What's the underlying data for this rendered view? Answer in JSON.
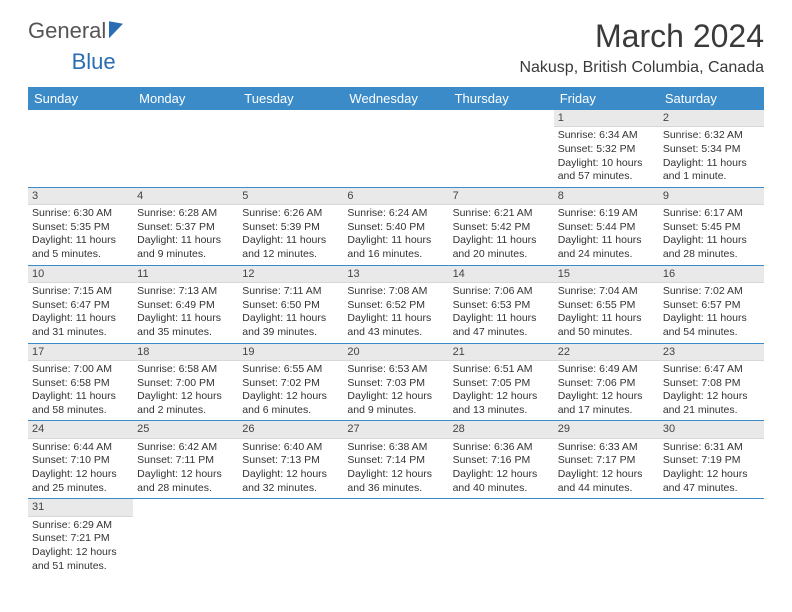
{
  "brand": {
    "part1": "General",
    "part2": "Blue"
  },
  "title": "March 2024",
  "location": "Nakusp, British Columbia, Canada",
  "colors": {
    "header_bg": "#3b8bc9",
    "header_text": "#ffffff",
    "daynum_bg": "#e9e9e9",
    "row_border": "#3b8bc9",
    "text": "#333333",
    "background": "#ffffff"
  },
  "weekdays": [
    "Sunday",
    "Monday",
    "Tuesday",
    "Wednesday",
    "Thursday",
    "Friday",
    "Saturday"
  ],
  "weeks": [
    [
      {
        "empty": true
      },
      {
        "empty": true
      },
      {
        "empty": true
      },
      {
        "empty": true
      },
      {
        "empty": true
      },
      {
        "num": "1",
        "sunrise": "Sunrise: 6:34 AM",
        "sunset": "Sunset: 5:32 PM",
        "daylight": "Daylight: 10 hours and 57 minutes."
      },
      {
        "num": "2",
        "sunrise": "Sunrise: 6:32 AM",
        "sunset": "Sunset: 5:34 PM",
        "daylight": "Daylight: 11 hours and 1 minute."
      }
    ],
    [
      {
        "num": "3",
        "sunrise": "Sunrise: 6:30 AM",
        "sunset": "Sunset: 5:35 PM",
        "daylight": "Daylight: 11 hours and 5 minutes."
      },
      {
        "num": "4",
        "sunrise": "Sunrise: 6:28 AM",
        "sunset": "Sunset: 5:37 PM",
        "daylight": "Daylight: 11 hours and 9 minutes."
      },
      {
        "num": "5",
        "sunrise": "Sunrise: 6:26 AM",
        "sunset": "Sunset: 5:39 PM",
        "daylight": "Daylight: 11 hours and 12 minutes."
      },
      {
        "num": "6",
        "sunrise": "Sunrise: 6:24 AM",
        "sunset": "Sunset: 5:40 PM",
        "daylight": "Daylight: 11 hours and 16 minutes."
      },
      {
        "num": "7",
        "sunrise": "Sunrise: 6:21 AM",
        "sunset": "Sunset: 5:42 PM",
        "daylight": "Daylight: 11 hours and 20 minutes."
      },
      {
        "num": "8",
        "sunrise": "Sunrise: 6:19 AM",
        "sunset": "Sunset: 5:44 PM",
        "daylight": "Daylight: 11 hours and 24 minutes."
      },
      {
        "num": "9",
        "sunrise": "Sunrise: 6:17 AM",
        "sunset": "Sunset: 5:45 PM",
        "daylight": "Daylight: 11 hours and 28 minutes."
      }
    ],
    [
      {
        "num": "10",
        "sunrise": "Sunrise: 7:15 AM",
        "sunset": "Sunset: 6:47 PM",
        "daylight": "Daylight: 11 hours and 31 minutes."
      },
      {
        "num": "11",
        "sunrise": "Sunrise: 7:13 AM",
        "sunset": "Sunset: 6:49 PM",
        "daylight": "Daylight: 11 hours and 35 minutes."
      },
      {
        "num": "12",
        "sunrise": "Sunrise: 7:11 AM",
        "sunset": "Sunset: 6:50 PM",
        "daylight": "Daylight: 11 hours and 39 minutes."
      },
      {
        "num": "13",
        "sunrise": "Sunrise: 7:08 AM",
        "sunset": "Sunset: 6:52 PM",
        "daylight": "Daylight: 11 hours and 43 minutes."
      },
      {
        "num": "14",
        "sunrise": "Sunrise: 7:06 AM",
        "sunset": "Sunset: 6:53 PM",
        "daylight": "Daylight: 11 hours and 47 minutes."
      },
      {
        "num": "15",
        "sunrise": "Sunrise: 7:04 AM",
        "sunset": "Sunset: 6:55 PM",
        "daylight": "Daylight: 11 hours and 50 minutes."
      },
      {
        "num": "16",
        "sunrise": "Sunrise: 7:02 AM",
        "sunset": "Sunset: 6:57 PM",
        "daylight": "Daylight: 11 hours and 54 minutes."
      }
    ],
    [
      {
        "num": "17",
        "sunrise": "Sunrise: 7:00 AM",
        "sunset": "Sunset: 6:58 PM",
        "daylight": "Daylight: 11 hours and 58 minutes."
      },
      {
        "num": "18",
        "sunrise": "Sunrise: 6:58 AM",
        "sunset": "Sunset: 7:00 PM",
        "daylight": "Daylight: 12 hours and 2 minutes."
      },
      {
        "num": "19",
        "sunrise": "Sunrise: 6:55 AM",
        "sunset": "Sunset: 7:02 PM",
        "daylight": "Daylight: 12 hours and 6 minutes."
      },
      {
        "num": "20",
        "sunrise": "Sunrise: 6:53 AM",
        "sunset": "Sunset: 7:03 PM",
        "daylight": "Daylight: 12 hours and 9 minutes."
      },
      {
        "num": "21",
        "sunrise": "Sunrise: 6:51 AM",
        "sunset": "Sunset: 7:05 PM",
        "daylight": "Daylight: 12 hours and 13 minutes."
      },
      {
        "num": "22",
        "sunrise": "Sunrise: 6:49 AM",
        "sunset": "Sunset: 7:06 PM",
        "daylight": "Daylight: 12 hours and 17 minutes."
      },
      {
        "num": "23",
        "sunrise": "Sunrise: 6:47 AM",
        "sunset": "Sunset: 7:08 PM",
        "daylight": "Daylight: 12 hours and 21 minutes."
      }
    ],
    [
      {
        "num": "24",
        "sunrise": "Sunrise: 6:44 AM",
        "sunset": "Sunset: 7:10 PM",
        "daylight": "Daylight: 12 hours and 25 minutes."
      },
      {
        "num": "25",
        "sunrise": "Sunrise: 6:42 AM",
        "sunset": "Sunset: 7:11 PM",
        "daylight": "Daylight: 12 hours and 28 minutes."
      },
      {
        "num": "26",
        "sunrise": "Sunrise: 6:40 AM",
        "sunset": "Sunset: 7:13 PM",
        "daylight": "Daylight: 12 hours and 32 minutes."
      },
      {
        "num": "27",
        "sunrise": "Sunrise: 6:38 AM",
        "sunset": "Sunset: 7:14 PM",
        "daylight": "Daylight: 12 hours and 36 minutes."
      },
      {
        "num": "28",
        "sunrise": "Sunrise: 6:36 AM",
        "sunset": "Sunset: 7:16 PM",
        "daylight": "Daylight: 12 hours and 40 minutes."
      },
      {
        "num": "29",
        "sunrise": "Sunrise: 6:33 AM",
        "sunset": "Sunset: 7:17 PM",
        "daylight": "Daylight: 12 hours and 44 minutes."
      },
      {
        "num": "30",
        "sunrise": "Sunrise: 6:31 AM",
        "sunset": "Sunset: 7:19 PM",
        "daylight": "Daylight: 12 hours and 47 minutes."
      }
    ],
    [
      {
        "num": "31",
        "sunrise": "Sunrise: 6:29 AM",
        "sunset": "Sunset: 7:21 PM",
        "daylight": "Daylight: 12 hours and 51 minutes."
      },
      {
        "empty": true
      },
      {
        "empty": true
      },
      {
        "empty": true
      },
      {
        "empty": true
      },
      {
        "empty": true
      },
      {
        "empty": true
      }
    ]
  ]
}
